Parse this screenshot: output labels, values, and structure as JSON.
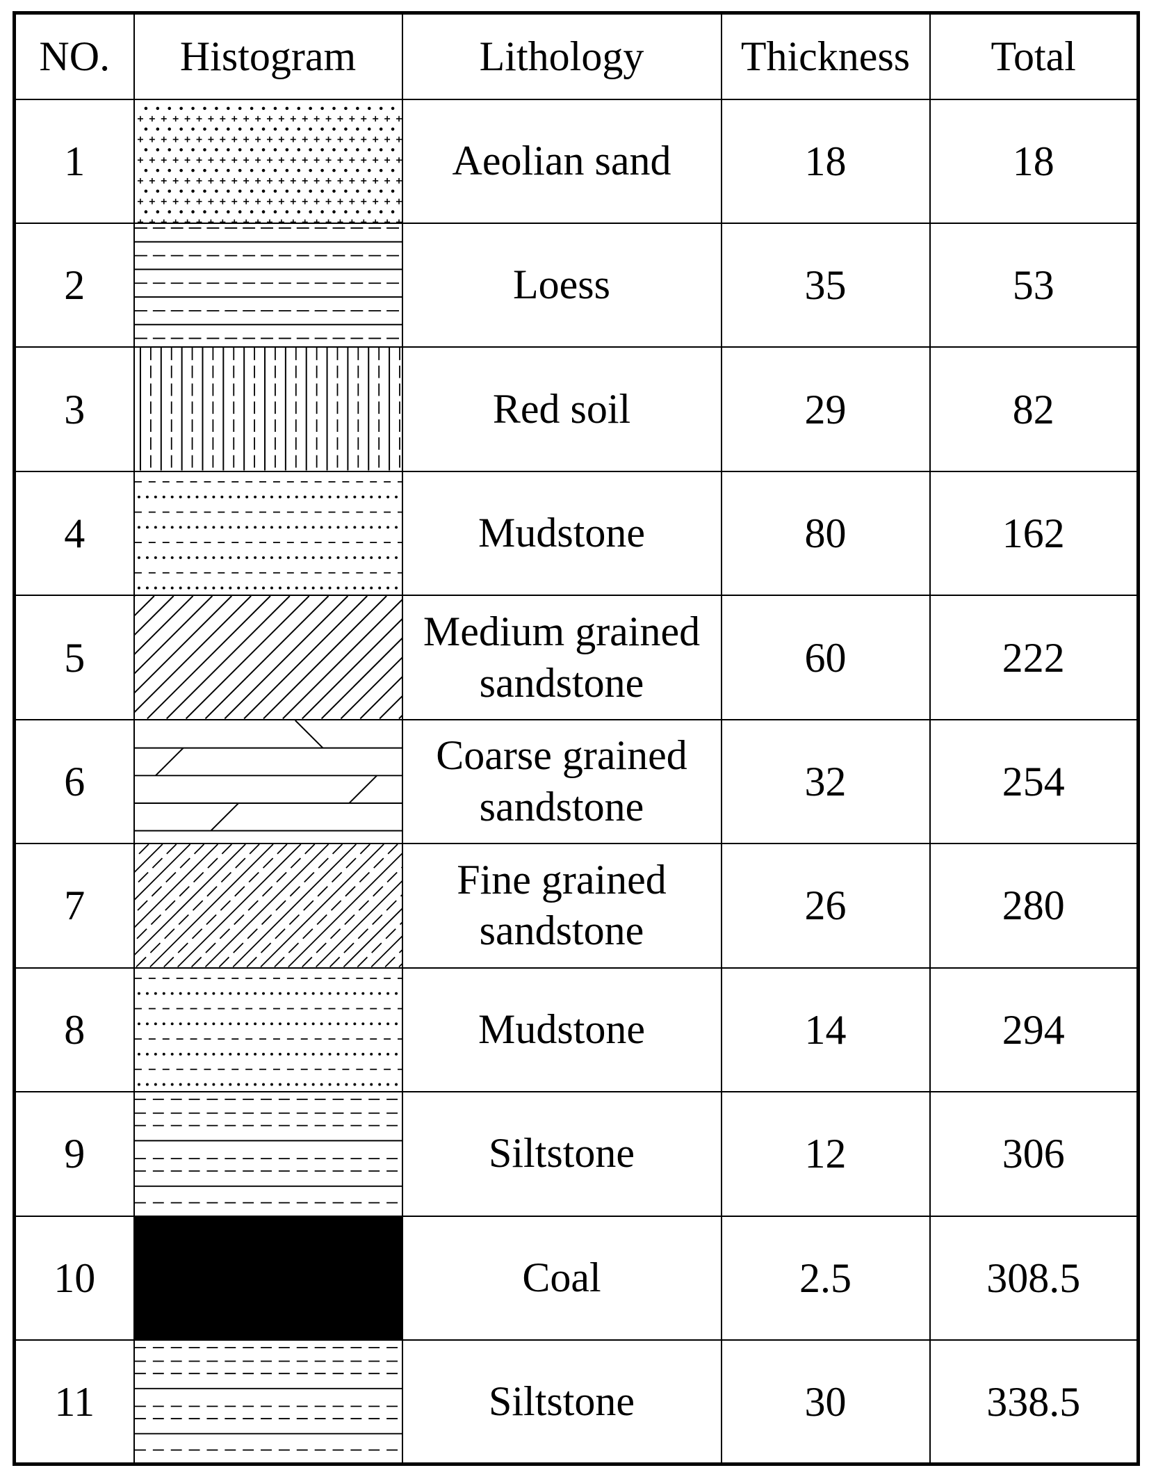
{
  "headers": {
    "no": "NO.",
    "histogram": "Histogram",
    "lithology": "Lithology",
    "thickness": "Thickness",
    "total": "Total"
  },
  "rows": [
    {
      "no": "1",
      "pattern": "aeolian-sand",
      "lithology": "Aeolian sand",
      "thickness": "18",
      "total": "18"
    },
    {
      "no": "2",
      "pattern": "loess",
      "lithology": "Loess",
      "thickness": "35",
      "total": "53"
    },
    {
      "no": "3",
      "pattern": "red-soil",
      "lithology": "Red soil",
      "thickness": "29",
      "total": "82"
    },
    {
      "no": "4",
      "pattern": "mudstone",
      "lithology": "Mudstone",
      "thickness": "80",
      "total": "162"
    },
    {
      "no": "5",
      "pattern": "medium-grained-sandstone",
      "lithology": "Medium grained sandstone",
      "thickness": "60",
      "total": "222"
    },
    {
      "no": "6",
      "pattern": "coarse-grained-sandstone",
      "lithology": "Coarse grained sandstone",
      "thickness": "32",
      "total": "254"
    },
    {
      "no": "7",
      "pattern": "fine-grained-sandstone",
      "lithology": "Fine grained sandstone",
      "thickness": "26",
      "total": "280"
    },
    {
      "no": "8",
      "pattern": "mudstone",
      "lithology": "Mudstone",
      "thickness": "14",
      "total": "294"
    },
    {
      "no": "9",
      "pattern": "siltstone",
      "lithology": "Siltstone",
      "thickness": "12",
      "total": "306"
    },
    {
      "no": "10",
      "pattern": "coal",
      "lithology": "Coal",
      "thickness": "2.5",
      "total": "308.5"
    },
    {
      "no": "11",
      "pattern": "siltstone",
      "lithology": "Siltstone",
      "thickness": "30",
      "total": "338.5"
    }
  ]
}
